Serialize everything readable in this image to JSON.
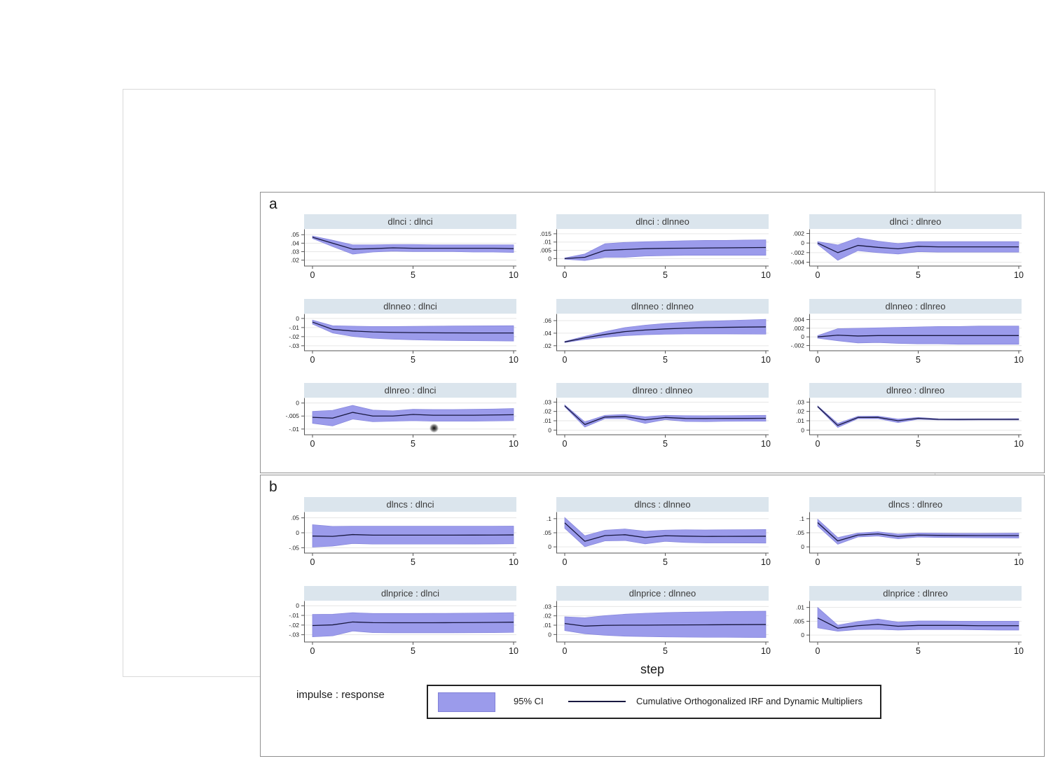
{
  "figure": {
    "panel_a_label": "a",
    "panel_b_label": "b",
    "xlabel": "step",
    "legend_note": "impulse : response",
    "legend": {
      "ci_label": "95% CI",
      "line_label": "Cumulative Orthogonalized IRF and Dynamic Multipliers"
    }
  },
  "colors": {
    "band": "#9b9beb",
    "band_edge": "#8585dd",
    "line": "#181840",
    "title_bg": "#dbe5ed",
    "grid": "#e6e6e6",
    "axis": "#555555",
    "panel_border": "#8f8f8f",
    "frame_border": "#d9d9d9"
  },
  "chart_data": {
    "type": "area",
    "x_range": [
      0,
      10
    ],
    "x_ticks": [
      0,
      5,
      10
    ],
    "subplots": [
      {
        "panel": "a",
        "title": "dlnci : dlnci",
        "ylim": [
          0.013,
          0.056
        ],
        "yticks": [
          {
            "v": 0.05,
            "label": ".05"
          },
          {
            "v": 0.04,
            "label": ".04"
          },
          {
            "v": 0.03,
            "label": ".03"
          },
          {
            "v": 0.02,
            "label": ".02"
          }
        ],
        "x": [
          0,
          1,
          2,
          3,
          4,
          5,
          6,
          7,
          8,
          9,
          10
        ],
        "line": [
          0.047,
          0.04,
          0.033,
          0.0335,
          0.0345,
          0.034,
          0.034,
          0.034,
          0.034,
          0.034,
          0.0335
        ],
        "lower": [
          0.0455,
          0.036,
          0.027,
          0.0295,
          0.0305,
          0.03,
          0.03,
          0.03,
          0.0295,
          0.0295,
          0.029
        ],
        "upper": [
          0.0485,
          0.0435,
          0.038,
          0.038,
          0.0385,
          0.0385,
          0.038,
          0.038,
          0.038,
          0.038,
          0.038
        ]
      },
      {
        "panel": "a",
        "title": "dlnci : dlnneo",
        "ylim": [
          -0.0045,
          0.0175
        ],
        "yticks": [
          {
            "v": 0.015,
            "label": ".015"
          },
          {
            "v": 0.01,
            "label": ".01"
          },
          {
            "v": 0.005,
            "label": ".005"
          },
          {
            "v": 0,
            "label": "0"
          }
        ],
        "x": [
          0,
          1,
          2,
          3,
          4,
          5,
          6,
          7,
          8,
          9,
          10
        ],
        "line": [
          0,
          0.0008,
          0.005,
          0.0055,
          0.006,
          0.0062,
          0.0063,
          0.0064,
          0.0065,
          0.0066,
          0.0067
        ],
        "lower": [
          -0.0004,
          -0.0012,
          0.0008,
          0.0008,
          0.0015,
          0.0018,
          0.002,
          0.002,
          0.002,
          0.002,
          0.002
        ],
        "upper": [
          0.0004,
          0.0028,
          0.009,
          0.0098,
          0.0102,
          0.0105,
          0.0108,
          0.011,
          0.011,
          0.0112,
          0.0113
        ]
      },
      {
        "panel": "a",
        "title": "dlnci : dlnreo",
        "ylim": [
          -0.0048,
          0.0028
        ],
        "yticks": [
          {
            "v": 0.002,
            "label": ".002"
          },
          {
            "v": 0,
            "label": "0"
          },
          {
            "v": -0.002,
            "label": "-.002"
          },
          {
            "v": -0.004,
            "label": "-.004"
          }
        ],
        "x": [
          0,
          1,
          2,
          3,
          4,
          5,
          6,
          7,
          8,
          9,
          10
        ],
        "line": [
          0,
          -0.002,
          -0.0005,
          -0.0009,
          -0.0012,
          -0.0007,
          -0.0008,
          -0.0008,
          -0.0008,
          -0.0008,
          -0.0008
        ],
        "lower": [
          -0.0003,
          -0.0036,
          -0.0016,
          -0.002,
          -0.0023,
          -0.0018,
          -0.0019,
          -0.0019,
          -0.0019,
          -0.0019,
          -0.0019
        ],
        "upper": [
          0.0003,
          -0.0004,
          0.0011,
          0.0004,
          -0.0001,
          0.0003,
          0.0003,
          0.0003,
          0.0003,
          0.0003,
          0.0003
        ]
      },
      {
        "panel": "a",
        "title": "dlnneo : dlnci",
        "ylim": [
          -0.0355,
          0.0045
        ],
        "yticks": [
          {
            "v": 0,
            "label": "0"
          },
          {
            "v": -0.01,
            "label": "-.01"
          },
          {
            "v": -0.02,
            "label": "-.02"
          },
          {
            "v": -0.03,
            "label": "-.03"
          }
        ],
        "x": [
          0,
          1,
          2,
          3,
          4,
          5,
          6,
          7,
          8,
          9,
          10
        ],
        "line": [
          -0.004,
          -0.012,
          -0.0138,
          -0.0148,
          -0.0153,
          -0.0156,
          -0.0158,
          -0.0159,
          -0.016,
          -0.016,
          -0.016
        ],
        "lower": [
          -0.0062,
          -0.016,
          -0.0198,
          -0.0218,
          -0.0228,
          -0.0235,
          -0.024,
          -0.0243,
          -0.0245,
          -0.0247,
          -0.0248
        ],
        "upper": [
          -0.0018,
          -0.008,
          -0.0085,
          -0.0088,
          -0.0088,
          -0.0087,
          -0.0085,
          -0.0083,
          -0.0082,
          -0.0081,
          -0.008
        ]
      },
      {
        "panel": "a",
        "title": "dlnneo : dlnneo",
        "ylim": [
          0.012,
          0.07
        ],
        "yticks": [
          {
            "v": 0.06,
            "label": ".06"
          },
          {
            "v": 0.04,
            "label": ".04"
          },
          {
            "v": 0.02,
            "label": ".02"
          }
        ],
        "x": [
          0,
          1,
          2,
          3,
          4,
          5,
          6,
          7,
          8,
          9,
          10
        ],
        "line": [
          0.026,
          0.0325,
          0.038,
          0.0425,
          0.045,
          0.0468,
          0.048,
          0.0488,
          0.0493,
          0.0497,
          0.05
        ],
        "lower": [
          0.025,
          0.03,
          0.0335,
          0.036,
          0.0375,
          0.0383,
          0.0387,
          0.0388,
          0.0388,
          0.0386,
          0.0384
        ],
        "upper": [
          0.027,
          0.035,
          0.0425,
          0.049,
          0.0528,
          0.0555,
          0.0575,
          0.059,
          0.06,
          0.061,
          0.062
        ]
      },
      {
        "panel": "a",
        "title": "dlnneo : dlnreo",
        "ylim": [
          -0.0032,
          0.0052
        ],
        "yticks": [
          {
            "v": 0.004,
            "label": ".004"
          },
          {
            "v": 0.002,
            "label": ".002"
          },
          {
            "v": 0,
            "label": "0"
          },
          {
            "v": -0.002,
            "label": "-.002"
          }
        ],
        "x": [
          0,
          1,
          2,
          3,
          4,
          5,
          6,
          7,
          8,
          9,
          10
        ],
        "line": [
          0,
          0.0004,
          0.0002,
          0.0003,
          0.0003,
          0.0003,
          0.0003,
          0.0003,
          0.0003,
          0.0003,
          0.0003
        ],
        "lower": [
          -0.0003,
          -0.0009,
          -0.0014,
          -0.0013,
          -0.0015,
          -0.0016,
          -0.0016,
          -0.0017,
          -0.0017,
          -0.0017,
          -0.0017
        ],
        "upper": [
          0.0003,
          0.0019,
          0.002,
          0.0021,
          0.0022,
          0.0023,
          0.0024,
          0.0024,
          0.0025,
          0.0025,
          0.0025
        ]
      },
      {
        "panel": "a",
        "title": "dlnreo : dlnci",
        "ylim": [
          -0.0122,
          0.0018
        ],
        "yticks": [
          {
            "v": 0,
            "label": "0"
          },
          {
            "v": -0.005,
            "label": "-.005"
          },
          {
            "v": -0.01,
            "label": "-.01"
          }
        ],
        "x": [
          0,
          1,
          2,
          3,
          4,
          5,
          6,
          7,
          8,
          9,
          10
        ],
        "line": [
          -0.0055,
          -0.0058,
          -0.0036,
          -0.005,
          -0.005,
          -0.0044,
          -0.0047,
          -0.0047,
          -0.0047,
          -0.0046,
          -0.0045
        ],
        "lower": [
          -0.0078,
          -0.0088,
          -0.0062,
          -0.0072,
          -0.007,
          -0.0068,
          -0.007,
          -0.007,
          -0.007,
          -0.0069,
          -0.0068
        ],
        "upper": [
          -0.0032,
          -0.0028,
          -0.0009,
          -0.0027,
          -0.003,
          -0.0024,
          -0.0025,
          -0.0025,
          -0.0024,
          -0.0023,
          -0.0021
        ]
      },
      {
        "panel": "a",
        "title": "dlnreo : dlnneo",
        "ylim": [
          -0.005,
          0.034
        ],
        "yticks": [
          {
            "v": 0.03,
            "label": ".03"
          },
          {
            "v": 0.02,
            "label": ".02"
          },
          {
            "v": 0.01,
            "label": ".01"
          },
          {
            "v": 0,
            "label": "0"
          }
        ],
        "x": [
          0,
          1,
          2,
          3,
          4,
          5,
          6,
          7,
          8,
          9,
          10
        ],
        "line": [
          0.026,
          0.006,
          0.014,
          0.0145,
          0.011,
          0.0135,
          0.0125,
          0.0124,
          0.0125,
          0.0125,
          0.0126
        ],
        "lower": [
          0.025,
          0.0032,
          0.0122,
          0.0122,
          0.0072,
          0.0112,
          0.0092,
          0.009,
          0.0094,
          0.0095,
          0.0095
        ],
        "upper": [
          0.027,
          0.0088,
          0.0158,
          0.0168,
          0.0142,
          0.0158,
          0.0155,
          0.0154,
          0.0155,
          0.0156,
          0.0158
        ]
      },
      {
        "panel": "a",
        "title": "dlnreo : dlnreo",
        "ylim": [
          -0.005,
          0.034
        ],
        "yticks": [
          {
            "v": 0.03,
            "label": ".03"
          },
          {
            "v": 0.02,
            "label": ".02"
          },
          {
            "v": 0.01,
            "label": ".01"
          },
          {
            "v": 0,
            "label": "0"
          }
        ],
        "x": [
          0,
          1,
          2,
          3,
          4,
          5,
          6,
          7,
          8,
          9,
          10
        ],
        "line": [
          0.0252,
          0.005,
          0.0135,
          0.0136,
          0.01,
          0.0126,
          0.0115,
          0.0114,
          0.0115,
          0.0115,
          0.0115
        ],
        "lower": [
          0.0245,
          0.0028,
          0.0122,
          0.0122,
          0.008,
          0.0116,
          0.0108,
          0.0107,
          0.0108,
          0.0108,
          0.0108
        ],
        "upper": [
          0.0259,
          0.0072,
          0.0148,
          0.015,
          0.0118,
          0.0136,
          0.0122,
          0.0121,
          0.0122,
          0.0122,
          0.0123
        ]
      },
      {
        "panel": "b",
        "title": "dlncs : dlnci",
        "ylim": [
          -0.068,
          0.068
        ],
        "yticks": [
          {
            "v": 0.05,
            "label": ".05"
          },
          {
            "v": 0,
            "label": "0"
          },
          {
            "v": -0.05,
            "label": "-.05"
          }
        ],
        "x": [
          0,
          1,
          2,
          3,
          4,
          5,
          6,
          7,
          8,
          9,
          10
        ],
        "line": [
          -0.011,
          -0.012,
          -0.006,
          -0.008,
          -0.008,
          -0.008,
          -0.008,
          -0.008,
          -0.0078,
          -0.0076,
          -0.0072
        ],
        "lower": [
          -0.048,
          -0.0445,
          -0.036,
          -0.038,
          -0.038,
          -0.038,
          -0.038,
          -0.038,
          -0.0378,
          -0.0375,
          -0.037
        ],
        "upper": [
          0.027,
          0.0215,
          0.022,
          0.022,
          0.022,
          0.022,
          0.022,
          0.022,
          0.022,
          0.022,
          0.0222
        ]
      },
      {
        "panel": "b",
        "title": "dlncs : dlnneo",
        "ylim": [
          -0.022,
          0.122
        ],
        "yticks": [
          {
            "v": 0.1,
            "label": ".1"
          },
          {
            "v": 0.05,
            "label": ".05"
          },
          {
            "v": 0,
            "label": "0"
          }
        ],
        "x": [
          0,
          1,
          2,
          3,
          4,
          5,
          6,
          7,
          8,
          9,
          10
        ],
        "line": [
          0.085,
          0.02,
          0.04,
          0.043,
          0.033,
          0.0395,
          0.038,
          0.037,
          0.0372,
          0.0374,
          0.0378
        ],
        "lower": [
          0.066,
          0.0005,
          0.021,
          0.0225,
          0.0105,
          0.0195,
          0.0155,
          0.014,
          0.0138,
          0.0135,
          0.0132
        ],
        "upper": [
          0.104,
          0.0395,
          0.059,
          0.0635,
          0.0555,
          0.0595,
          0.0605,
          0.06,
          0.0605,
          0.0608,
          0.0615
        ]
      },
      {
        "panel": "b",
        "title": "dlncs : dlnreo",
        "ylim": [
          -0.022,
          0.122
        ],
        "yticks": [
          {
            "v": 0.1,
            "label": ".1"
          },
          {
            "v": 0.05,
            "label": ".05"
          },
          {
            "v": 0,
            "label": "0"
          }
        ],
        "x": [
          0,
          1,
          2,
          3,
          4,
          5,
          6,
          7,
          8,
          9,
          10
        ],
        "line": [
          0.086,
          0.021,
          0.042,
          0.046,
          0.037,
          0.042,
          0.0408,
          0.0402,
          0.04,
          0.04,
          0.04
        ],
        "lower": [
          0.074,
          0.009,
          0.035,
          0.0385,
          0.0285,
          0.035,
          0.0332,
          0.0328,
          0.0322,
          0.0318,
          0.0312
        ],
        "upper": [
          0.098,
          0.033,
          0.049,
          0.0535,
          0.0455,
          0.049,
          0.0484,
          0.0478,
          0.0478,
          0.0482,
          0.0488
        ]
      },
      {
        "panel": "b",
        "title": "dlnprice : dlnci",
        "ylim": [
          -0.0375,
          0.0045
        ],
        "yticks": [
          {
            "v": 0,
            "label": "0"
          },
          {
            "v": -0.01,
            "label": "-.01"
          },
          {
            "v": -0.02,
            "label": "-.02"
          },
          {
            "v": -0.03,
            "label": "-.03"
          }
        ],
        "x": [
          0,
          1,
          2,
          3,
          4,
          5,
          6,
          7,
          8,
          9,
          10
        ],
        "line": [
          -0.0205,
          -0.0198,
          -0.0168,
          -0.0175,
          -0.0176,
          -0.0176,
          -0.0176,
          -0.0175,
          -0.0174,
          -0.0172,
          -0.017
        ],
        "lower": [
          -0.0322,
          -0.0312,
          -0.0262,
          -0.0278,
          -0.028,
          -0.028,
          -0.028,
          -0.028,
          -0.0279,
          -0.0278,
          -0.0276
        ],
        "upper": [
          -0.009,
          -0.0088,
          -0.0072,
          -0.008,
          -0.008,
          -0.008,
          -0.0079,
          -0.0078,
          -0.0076,
          -0.0074,
          -0.0072
        ]
      },
      {
        "panel": "b",
        "title": "dlnprice : dlnneo",
        "ylim": [
          -0.008,
          0.0355
        ],
        "yticks": [
          {
            "v": 0.03,
            "label": ".03"
          },
          {
            "v": 0.02,
            "label": ".02"
          },
          {
            "v": 0.01,
            "label": ".01"
          },
          {
            "v": 0,
            "label": "0"
          }
        ],
        "x": [
          0,
          1,
          2,
          3,
          4,
          5,
          6,
          7,
          8,
          9,
          10
        ],
        "line": [
          0.0118,
          0.009,
          0.0098,
          0.01,
          0.01,
          0.0102,
          0.0103,
          0.0104,
          0.0105,
          0.0106,
          0.0107
        ],
        "lower": [
          0.0042,
          0.0008,
          -0.0008,
          -0.0018,
          -0.0022,
          -0.0026,
          -0.0028,
          -0.003,
          -0.003,
          -0.0031,
          -0.0032
        ],
        "upper": [
          0.019,
          0.018,
          0.0202,
          0.0218,
          0.0228,
          0.0235,
          0.024,
          0.0243,
          0.0246,
          0.0248,
          0.025
        ]
      },
      {
        "panel": "b",
        "title": "dlnprice : dlnreo",
        "ylim": [
          -0.0025,
          0.0122
        ],
        "yticks": [
          {
            "v": 0.01,
            "label": ".01"
          },
          {
            "v": 0.005,
            "label": ".005"
          },
          {
            "v": 0,
            "label": "0"
          }
        ],
        "x": [
          0,
          1,
          2,
          3,
          4,
          5,
          6,
          7,
          8,
          9,
          10
        ],
        "line": [
          0.0062,
          0.0025,
          0.0034,
          0.0039,
          0.0032,
          0.0035,
          0.0035,
          0.0035,
          0.0034,
          0.0034,
          0.0034
        ],
        "lower": [
          0.0026,
          0.0014,
          0.002,
          0.0021,
          0.0018,
          0.002,
          0.002,
          0.002,
          0.0019,
          0.0018,
          0.0018
        ],
        "upper": [
          0.01,
          0.0036,
          0.0049,
          0.0058,
          0.0047,
          0.0051,
          0.0051,
          0.005,
          0.005,
          0.005,
          0.005
        ]
      }
    ]
  }
}
